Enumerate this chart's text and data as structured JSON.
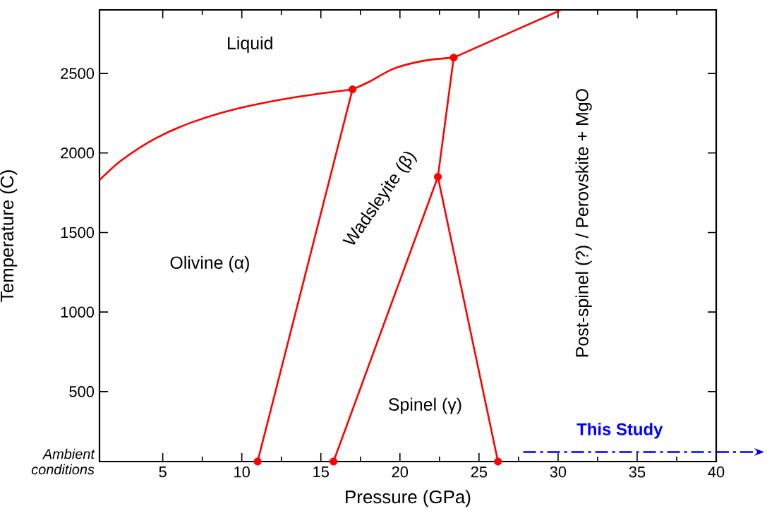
{
  "chart_data": {
    "type": "line",
    "xlabel": "Pressure (GPa)",
    "ylabel": "Temperature (C)",
    "xlim": [
      1,
      40
    ],
    "ylim": [
      60,
      2900
    ],
    "xticks": [
      5,
      10,
      15,
      20,
      25,
      30,
      35,
      40
    ],
    "yticks": [
      {
        "value": 60,
        "label": "Ambient conditions"
      },
      500,
      1000,
      1500,
      2000,
      2500
    ],
    "series": [
      {
        "color": "#ff0000",
        "x": [
          1,
          2.4,
          4.5,
          6.9,
          9.75,
          13.3,
          17
        ],
        "values": [
          1830,
          1955,
          2090,
          2195,
          2280,
          2350,
          2400
        ]
      },
      {
        "color": "#ff0000",
        "x": [
          17,
          18,
          19.6,
          21.5,
          23.4
        ],
        "values": [
          2400,
          2445,
          2530,
          2580,
          2600
        ]
      },
      {
        "color": "#ff0000",
        "x": [
          23.4,
          30.2
        ],
        "values": [
          2600,
          2900
        ]
      },
      {
        "color": "#ff0000",
        "x": [
          11,
          17
        ],
        "values": [
          60,
          2400
        ]
      },
      {
        "color": "#ff0000",
        "x": [
          15.8,
          22.4,
          23.4
        ],
        "values": [
          60,
          1850,
          2600
        ]
      },
      {
        "color": "#ff0000",
        "x": [
          22.4,
          26.2
        ],
        "values": [
          1850,
          60
        ]
      },
      {
        "type": "scatter",
        "color": "#ff0000",
        "marker": "circle",
        "x": [
          17,
          23.4,
          22.4,
          11,
          15.8,
          26.2
        ],
        "values": [
          2400,
          2600,
          1850,
          60,
          60,
          60
        ]
      },
      {
        "name": "This Study",
        "color": "#0000ff",
        "line_style": "dashed",
        "x": [
          27.8,
          40
        ],
        "values": [
          120,
          120
        ]
      }
    ],
    "annotations": [
      "Liquid",
      "Olivine (α)",
      "Wadsleyite (β)",
      "Spinel (γ)",
      "Post-spinel (?) / Perovskite + MgO"
    ]
  }
}
